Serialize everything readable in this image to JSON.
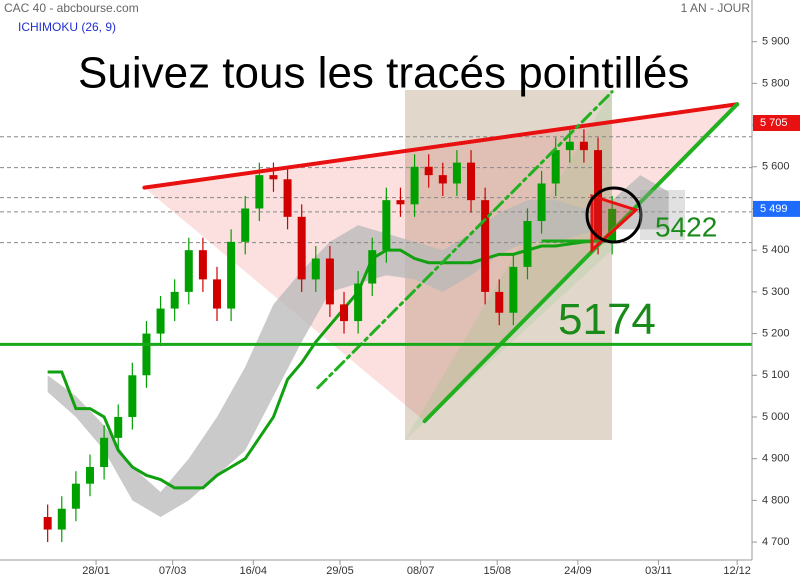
{
  "chart_data": {
    "type": "candlestick",
    "title": "Suivez tous les tracés pointillés",
    "source": "CAC 40 - abcbourse.com",
    "indicator": "ICHIMOKU (26, 9)",
    "period": "1 AN - JOUR",
    "ylim": [
      4657,
      6000
    ],
    "yticks": [
      {
        "value": 4700,
        "label": "4 700"
      },
      {
        "value": 4800,
        "label": "4 800"
      },
      {
        "value": 4900,
        "label": "4 900"
      },
      {
        "value": 5000,
        "label": "5 000"
      },
      {
        "value": 5100,
        "label": "5 100"
      },
      {
        "value": 5200,
        "label": "5 200"
      },
      {
        "value": 5300,
        "label": "5 300"
      },
      {
        "value": 5400,
        "label": "5 400"
      },
      {
        "value": 5500,
        "label": "5 500"
      },
      {
        "value": 5600,
        "label": "5 600"
      },
      {
        "value": 5700,
        "label": "5 700"
      },
      {
        "value": 5800,
        "label": "5 800"
      },
      {
        "value": 5900,
        "label": "5 900"
      }
    ],
    "xticks": [
      "28/01",
      "07/03",
      "16/04",
      "29/05",
      "08/07",
      "15/08",
      "24/09",
      "03/11",
      "12/12"
    ],
    "up_color": "#00a000",
    "down_color": "#d00000",
    "x": [
      "04/01",
      "11/01",
      "18/01",
      "25/01",
      "01/02",
      "08/02",
      "15/02",
      "22/02",
      "01/03",
      "08/03",
      "15/03",
      "22/03",
      "29/03",
      "05/04",
      "12/04",
      "19/04",
      "26/04",
      "03/05",
      "10/05",
      "17/05",
      "24/05",
      "31/05",
      "07/06",
      "14/06",
      "21/06",
      "28/06",
      "05/07",
      "12/07",
      "19/07",
      "26/07",
      "02/08",
      "09/08",
      "16/08",
      "23/08",
      "30/08",
      "06/09",
      "13/09",
      "20/09",
      "27/09",
      "04/10",
      "11/10"
    ],
    "open": [
      4760,
      4730,
      4780,
      4840,
      4880,
      4950,
      5000,
      5100,
      5200,
      5260,
      5300,
      5400,
      5330,
      5260,
      5420,
      5500,
      5580,
      5570,
      5480,
      5330,
      5380,
      5270,
      5230,
      5320,
      5400,
      5520,
      5510,
      5600,
      5580,
      5560,
      5610,
      5520,
      5300,
      5250,
      5360,
      5470,
      5560,
      5640,
      5660,
      5640,
      5420
    ],
    "high": [
      4790,
      4810,
      4870,
      4910,
      4980,
      5030,
      5130,
      5230,
      5290,
      5330,
      5430,
      5430,
      5360,
      5450,
      5530,
      5610,
      5610,
      5600,
      5510,
      5410,
      5410,
      5300,
      5350,
      5430,
      5550,
      5550,
      5630,
      5630,
      5610,
      5640,
      5640,
      5550,
      5330,
      5390,
      5500,
      5590,
      5670,
      5690,
      5690,
      5670,
      5530
    ],
    "low": [
      4700,
      4700,
      4750,
      4810,
      4850,
      4920,
      4970,
      5070,
      5170,
      5230,
      5270,
      5300,
      5230,
      5230,
      5390,
      5470,
      5540,
      5450,
      5300,
      5300,
      5240,
      5200,
      5200,
      5290,
      5370,
      5480,
      5480,
      5550,
      5530,
      5530,
      5490,
      5270,
      5220,
      5220,
      5330,
      5440,
      5530,
      5610,
      5610,
      5390,
      5390
    ],
    "close": [
      4730,
      4780,
      4840,
      4880,
      4950,
      5000,
      5100,
      5200,
      5260,
      5300,
      5400,
      5330,
      5260,
      5420,
      5500,
      5580,
      5570,
      5480,
      5330,
      5380,
      5270,
      5230,
      5320,
      5400,
      5520,
      5510,
      5600,
      5580,
      5560,
      5610,
      5520,
      5300,
      5250,
      5360,
      5470,
      5560,
      5640,
      5660,
      5640,
      5420,
      5499
    ],
    "kijun": {
      "color": "#10a010",
      "values": [
        5108,
        5108,
        5020,
        5020,
        5000,
        4920,
        4880,
        4860,
        4850,
        4830,
        4830,
        4830,
        4860,
        4880,
        4900,
        4950,
        5000,
        5090,
        5130,
        5180,
        5220,
        5260,
        5300,
        5380,
        5400,
        5400,
        5380,
        5370,
        5370,
        5370,
        5370,
        5380,
        5390,
        5390,
        5400,
        5410,
        5410,
        5415,
        5420,
        5422,
        5425
      ]
    },
    "cloud": {
      "color": "#b8b8b8",
      "x": [
        "04/01",
        "18/01",
        "01/02",
        "15/02",
        "01/03",
        "15/03",
        "29/03",
        "12/04",
        "26/04",
        "10/05",
        "24/05",
        "07/06",
        "21/06",
        "05/07",
        "19/07",
        "02/08",
        "16/08",
        "30/08",
        "13/09",
        "27/09",
        "11/10",
        "25/10",
        "08/11"
      ],
      "upper": [
        5100,
        5050,
        4980,
        4880,
        4820,
        4900,
        5000,
        5120,
        5270,
        5350,
        5420,
        5460,
        5440,
        5420,
        5400,
        5440,
        5490,
        5520,
        5520,
        5500,
        5520,
        5580,
        5540
      ],
      "lower": [
        5060,
        5000,
        4920,
        4800,
        4760,
        4800,
        4860,
        4920,
        5050,
        5180,
        5300,
        5320,
        5340,
        5330,
        5300,
        5340,
        5390,
        5420,
        5420,
        5440,
        5450,
        5450,
        5450
      ]
    },
    "dashed_levels": [
      5672,
      5598,
      5526,
      5492,
      5418
    ],
    "trendlines": [
      {
        "color": "#e81010",
        "style": "solid",
        "x": [
          "21/02",
          "12/12"
        ],
        "y": [
          5550,
          5750
        ]
      },
      {
        "color": "#20b020",
        "style": "solid",
        "x": [
          "10/07",
          "12/12"
        ],
        "y": [
          4990,
          5750
        ]
      },
      {
        "color": "#20b020",
        "style": "dashdot",
        "x": [
          "18/05",
          "11/10"
        ],
        "y": [
          5070,
          5780
        ]
      }
    ],
    "support_levels": [
      {
        "value": 5174,
        "from": "04/01"
      },
      {
        "value": 5422,
        "from": "06/09"
      }
    ],
    "support_color": "#18a818",
    "price_tags": [
      {
        "value": 5705,
        "label": "5 705",
        "color": "#e81010"
      },
      {
        "value": 5499,
        "label": "5 499",
        "color": "#1e6cff"
      }
    ]
  }
}
